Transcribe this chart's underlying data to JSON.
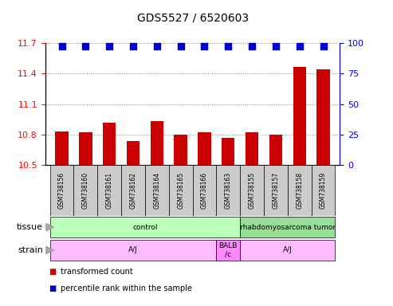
{
  "title": "GDS5527 / 6520603",
  "samples": [
    "GSM738156",
    "GSM738160",
    "GSM738161",
    "GSM738162",
    "GSM738164",
    "GSM738165",
    "GSM738166",
    "GSM738163",
    "GSM738155",
    "GSM738157",
    "GSM738158",
    "GSM738159"
  ],
  "transformed_count": [
    10.83,
    10.82,
    10.92,
    10.74,
    10.93,
    10.8,
    10.82,
    10.77,
    10.82,
    10.8,
    11.46,
    11.44
  ],
  "percentile_rank": [
    97,
    97,
    97,
    97,
    97,
    97,
    97,
    97,
    97,
    97,
    97,
    97
  ],
  "ylim_left": [
    10.5,
    11.7
  ],
  "ylim_right": [
    0,
    100
  ],
  "yticks_left": [
    10.5,
    10.8,
    11.1,
    11.4,
    11.7
  ],
  "yticks_right": [
    0,
    25,
    50,
    75,
    100
  ],
  "bar_color": "#cc0000",
  "dot_color": "#0000cc",
  "tissue_groups": [
    {
      "label": "control",
      "start": 0,
      "end": 7,
      "color": "#bbffbb"
    },
    {
      "label": "rhabdomyosarcoma tumor",
      "start": 8,
      "end": 11,
      "color": "#99dd99"
    }
  ],
  "strain_groups": [
    {
      "label": "A/J",
      "start": 0,
      "end": 6,
      "color": "#ffbbff"
    },
    {
      "label": "BALB\n/c",
      "start": 7,
      "end": 7,
      "color": "#ff88ff"
    },
    {
      "label": "A/J",
      "start": 8,
      "end": 11,
      "color": "#ffbbff"
    }
  ],
  "tissue_label": "tissue",
  "strain_label": "strain",
  "legend_bar_label": "transformed count",
  "legend_dot_label": "percentile rank within the sample",
  "background_color": "#ffffff",
  "plot_bg_color": "#ffffff",
  "grid_color": "#888888",
  "tick_label_bg": "#cccccc"
}
